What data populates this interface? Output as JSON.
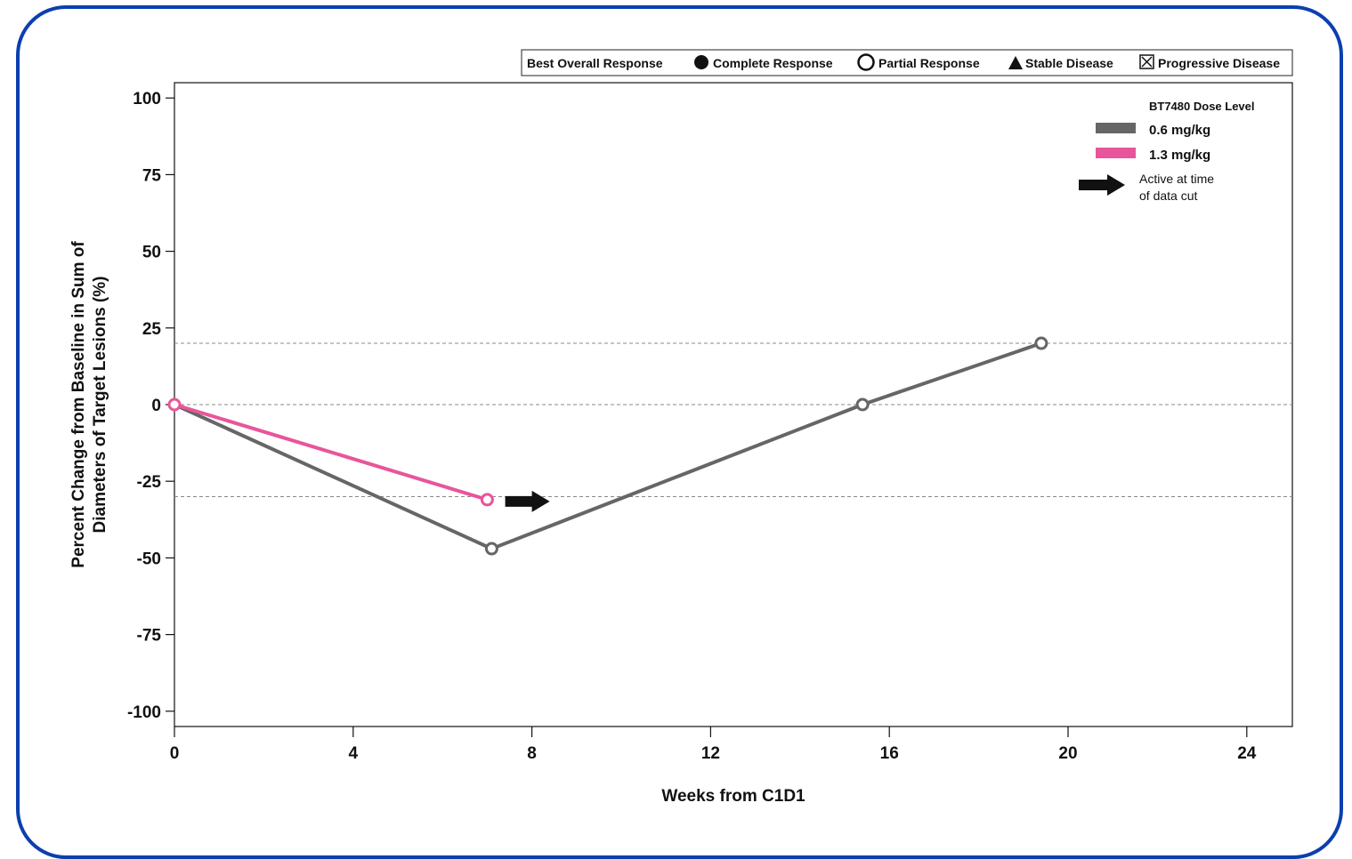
{
  "chart_data": {
    "type": "line",
    "xlabel": "Weeks from C1D1",
    "ylabel_lines": [
      "Percent Change from Baseline in Sum of",
      "Diameters of Target Lesions (%)"
    ],
    "xlim": [
      0,
      25
    ],
    "ylim": [
      -105,
      105
    ],
    "x_ticks": [
      0,
      4,
      8,
      12,
      16,
      20,
      24
    ],
    "y_ticks": [
      100,
      75,
      50,
      25,
      0,
      -25,
      -50,
      -75,
      -100
    ],
    "reference_lines": [
      20,
      0,
      -30
    ],
    "series": [
      {
        "name": "0.6 mg/kg",
        "color": "#666666",
        "points": [
          {
            "x": 0,
            "y": 0,
            "marker": "none"
          },
          {
            "x": 7.1,
            "y": -47,
            "marker": "open-circle"
          },
          {
            "x": 15.4,
            "y": 0,
            "marker": "open-circle"
          },
          {
            "x": 19.4,
            "y": 20,
            "marker": "open-circle"
          }
        ]
      },
      {
        "name": "1.3 mg/kg",
        "color": "#e8559b",
        "points": [
          {
            "x": 0,
            "y": 0,
            "marker": "open-circle"
          },
          {
            "x": 7.0,
            "y": -31,
            "marker": "open-circle"
          }
        ]
      }
    ],
    "arrows": [
      {
        "x": 8.0,
        "y": -31,
        "meaning": "active"
      }
    ],
    "legend_response": {
      "title": "Best Overall Response",
      "items": [
        {
          "label": "Complete Response",
          "marker": "filled-circle"
        },
        {
          "label": "Partial Response",
          "marker": "open-circle"
        },
        {
          "label": "Stable Disease",
          "marker": "filled-triangle"
        },
        {
          "label": "Progressive Disease",
          "marker": "boxed-x"
        }
      ]
    },
    "legend_dose": {
      "title": "BT7480 Dose Level",
      "items": [
        {
          "label": "0.6 mg/kg",
          "color": "#666666"
        },
        {
          "label": "1.3 mg/kg",
          "color": "#e8559b"
        }
      ],
      "arrow_note_lines": [
        "Active at time",
        "of data cut"
      ]
    },
    "grid": false
  }
}
